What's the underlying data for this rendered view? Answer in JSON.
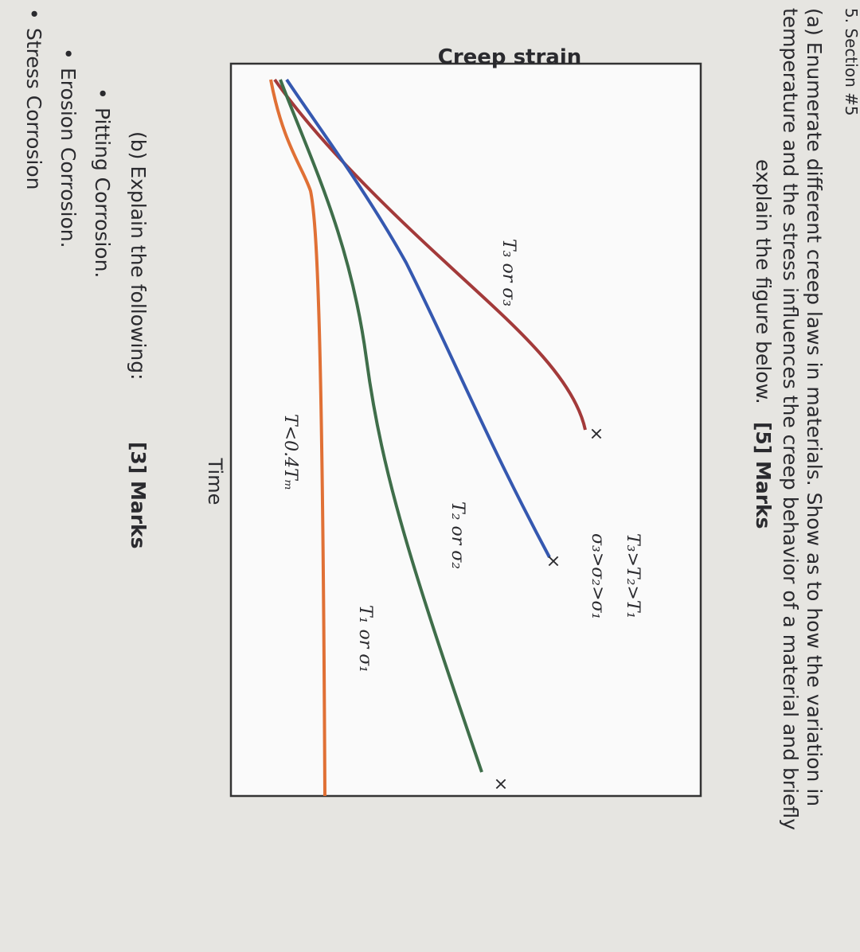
{
  "section": "5. Section #5",
  "question_a": {
    "lines": [
      "(a) Enumerate different creep laws in materials. Show as to how the variation in",
      "temperature and the stress influences the creep behavior of a material and briefly",
      "explain the figure below."
    ],
    "marks": "[5] Marks"
  },
  "figure": {
    "y_label": "Creep strain",
    "x_label": "Time",
    "curves": [
      {
        "label": "T₃ or σ₃"
      },
      {
        "label": "T₂ or σ₂"
      },
      {
        "label": "T₁ or σ₁"
      },
      {
        "label": "T<0.4Tₘ"
      }
    ],
    "relations": [
      "T₃>T₂>T₁",
      "σ₃>σ₂>σ₁"
    ]
  },
  "question_b": {
    "text": "(b) Explain the following:",
    "marks": "[3] Marks",
    "items": [
      "Pitting Corrosion.",
      "Erosion Corrosion.",
      "Stress Corrosion"
    ]
  }
}
